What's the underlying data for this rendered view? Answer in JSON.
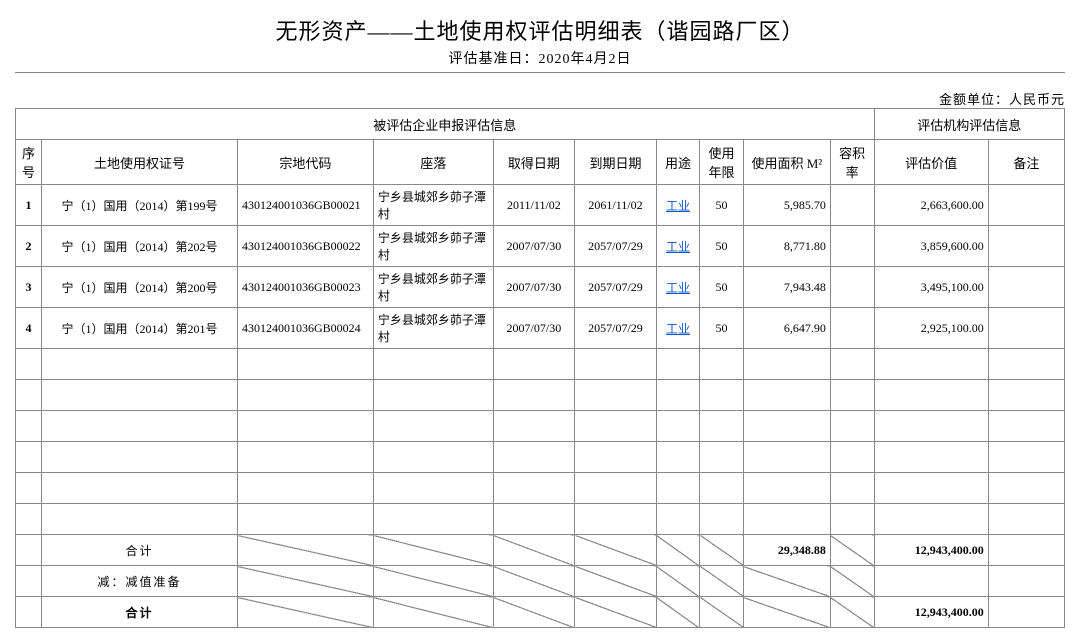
{
  "title": "无形资产——土地使用权评估明细表（谐园路厂区）",
  "subtitle": "评估基准日：2020年4月2日",
  "unit_label": "金额单位：人民币元",
  "group_headers": {
    "left": "被评估企业申报评估信息",
    "right": "评估机构评估信息"
  },
  "columns": {
    "seq": "序号",
    "cert": "土地使用权证号",
    "code": "宗地代码",
    "loc": "座落",
    "acq_date": "取得日期",
    "exp_date": "到期日期",
    "use": "用途",
    "years": "使用年限",
    "area": "使用面积 M²",
    "ratio": "容积率",
    "value": "评估价值",
    "note": "备注"
  },
  "rows": [
    {
      "seq": "1",
      "cert": "宁（1）国用（2014）第199号",
      "code": "430124001036GB00021",
      "loc": "宁乡县城郊乡茆子潭村",
      "acq": "2011/11/02",
      "exp": "2061/11/02",
      "use": "工业",
      "years": "50",
      "area": "5,985.70",
      "ratio": "",
      "value": "2,663,600.00",
      "note": ""
    },
    {
      "seq": "2",
      "cert": "宁（1）国用（2014）第202号",
      "code": "430124001036GB00022",
      "loc": "宁乡县城郊乡茆子潭村",
      "acq": "2007/07/30",
      "exp": "2057/07/29",
      "use": "工业",
      "years": "50",
      "area": "8,771.80",
      "ratio": "",
      "value": "3,859,600.00",
      "note": ""
    },
    {
      "seq": "3",
      "cert": "宁（1）国用（2014）第200号",
      "code": "430124001036GB00023",
      "loc": "宁乡县城郊乡茆子潭村",
      "acq": "2007/07/30",
      "exp": "2057/07/29",
      "use": "工业",
      "years": "50",
      "area": "7,943.48",
      "ratio": "",
      "value": "3,495,100.00",
      "note": ""
    },
    {
      "seq": "4",
      "cert": "宁（1）国用（2014）第201号",
      "code": "430124001036GB00024",
      "loc": "宁乡县城郊乡茆子潭村",
      "acq": "2007/07/30",
      "exp": "2057/07/29",
      "use": "工业",
      "years": "50",
      "area": "6,647.90",
      "ratio": "",
      "value": "2,925,100.00",
      "note": ""
    }
  ],
  "empty_row_count": 6,
  "totals": {
    "sum1_label": "合计",
    "sum1_area": "29,348.88",
    "sum1_value": "12,943,400.00",
    "less_label": "减：减值准备",
    "sum2_label": "合计",
    "sum2_value": "12,943,400.00"
  }
}
